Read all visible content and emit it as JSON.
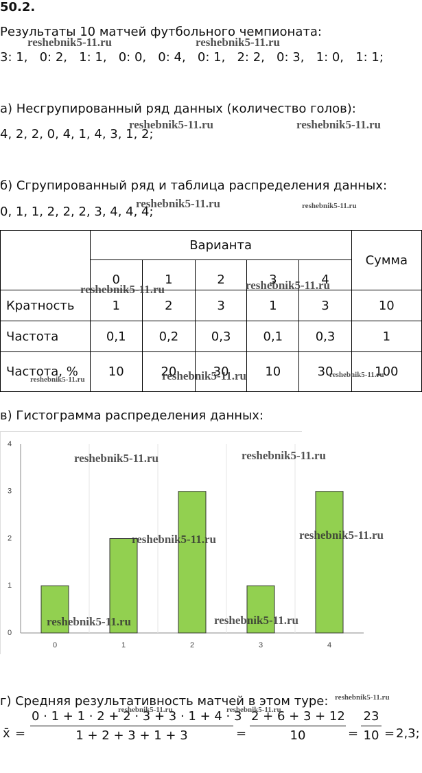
{
  "header": {
    "title": "50.2."
  },
  "intro": {
    "text": "Результаты 10 матчей футбольного чемпионата:",
    "scores": "3: 1,   0: 2,   1: 1,   0: 0,   0: 4,   0: 1,   2: 2,   0: 3,   1: 0,   1: 1;"
  },
  "part_a": {
    "heading": "а) Несгрупированный ряд данных (количество голов):",
    "series": "4, 2, 2, 0, 4, 1, 4, 3, 1, 2;"
  },
  "part_b": {
    "heading": "б) Сгрупированный ряд и таблица распределения данных:",
    "series": "0, 1, 1, 2, 2, 2, 3, 4, 4, 4;"
  },
  "table": {
    "variant": "Варианта",
    "sum": "Сумма",
    "variants": [
      "0",
      "1",
      "2",
      "3",
      "4"
    ],
    "rows": [
      [
        "Кратность",
        "1",
        "2",
        "3",
        "1",
        "3",
        "10"
      ],
      [
        "Частота",
        "0,1",
        "0,2",
        "0,3",
        "0,1",
        "0,3",
        "1"
      ],
      [
        "Частота, %",
        "10",
        "20",
        "30",
        "10",
        "30",
        "100"
      ]
    ]
  },
  "part_c": {
    "heading": "в) Гистограмма распределения данных:"
  },
  "chart": {
    "type": "bar",
    "categories": [
      "0",
      "1",
      "2",
      "3",
      "4"
    ],
    "values": [
      1,
      2,
      3,
      1,
      3
    ],
    "color": "#92d050",
    "ylim": [
      0,
      4
    ],
    "yticks": [
      0,
      1,
      2,
      3,
      4
    ]
  },
  "part_d": {
    "heading": "г) Средняя результативность матчей в этом туре:",
    "formula": {
      "lhs": "x̄",
      "eq": "=",
      "num1": "0 · 1 + 1 · 2 + 2 · 3 + 3 · 1 + 4 · 3",
      "den1": "1 + 2 + 3 + 1 + 3",
      "num2": "2 + 6 + 3 + 12",
      "den2": "10",
      "num3": "23",
      "den3": "10",
      "result": "2,3;"
    }
  },
  "watermark": "reshebnik5-11.ru"
}
